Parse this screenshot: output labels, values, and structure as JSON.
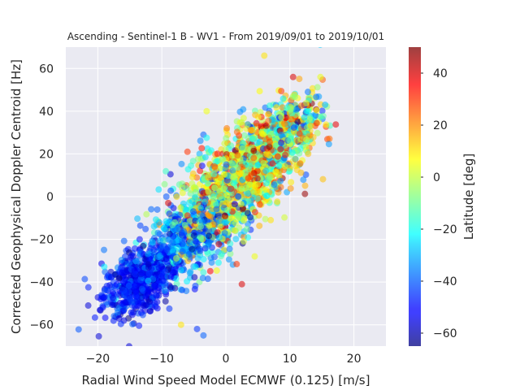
{
  "chart_data": {
    "type": "scatter",
    "title": "Ascending - Sentinel-1 B - WV1 - From 2019/09/01 to 2019/10/01",
    "xlabel": "Radial Wind Speed Model ECMWF (0.125) [m/s]",
    "ylabel": "Corrected Geophysical Doppler Centroid [Hz]",
    "xlim": [
      -25,
      25
    ],
    "ylim": [
      -70,
      70
    ],
    "x_ticks": [
      -20,
      -10,
      0,
      10,
      20
    ],
    "y_ticks": [
      -60,
      -40,
      -20,
      0,
      20,
      40,
      60
    ],
    "grid": true,
    "colorbar": {
      "label": "Latitude [deg]",
      "range": [
        -65,
        50
      ],
      "ticks": [
        -60,
        -40,
        -20,
        0,
        20,
        40
      ],
      "colormap": "jet"
    },
    "clusters": [
      {
        "x": -13.5,
        "y": -40,
        "sx": 2.8,
        "sy": 7,
        "latitude": -50,
        "lat_sd": 6,
        "count": 550
      },
      {
        "x": -7,
        "y": -22,
        "sx": 4,
        "sy": 9,
        "latitude": -38,
        "lat_sd": 10,
        "count": 450
      },
      {
        "x": -2,
        "y": -5,
        "sx": 3.5,
        "sy": 12,
        "latitude": -10,
        "lat_sd": 25,
        "count": 500
      },
      {
        "x": 4,
        "y": 12,
        "sx": 3.5,
        "sy": 10,
        "latitude": 5,
        "lat_sd": 20,
        "count": 600
      },
      {
        "x": 9,
        "y": 30,
        "sx": 3,
        "sy": 8,
        "latitude": -5,
        "lat_sd": 25,
        "count": 500
      }
    ],
    "outliers": [
      {
        "x": -21.5,
        "y": -51,
        "latitude": -55
      },
      {
        "x": -19.5,
        "y": -48,
        "latitude": -50
      },
      {
        "x": -7,
        "y": -60,
        "latitude": 10
      },
      {
        "x": -3.5,
        "y": -65,
        "latitude": -40
      },
      {
        "x": -4.5,
        "y": -62,
        "latitude": -45
      },
      {
        "x": 2.5,
        "y": -41,
        "latitude": 40
      },
      {
        "x": -9,
        "y": -3,
        "latitude": 40
      },
      {
        "x": -6,
        "y": 21,
        "latitude": 30
      },
      {
        "x": 6,
        "y": 66,
        "latitude": 10
      },
      {
        "x": -3,
        "y": 40,
        "latitude": 5
      },
      {
        "x": -3.5,
        "y": 29,
        "latitude": -40
      },
      {
        "x": 10.5,
        "y": 56,
        "latitude": 40
      },
      {
        "x": 15.5,
        "y": 43,
        "latitude": -30
      },
      {
        "x": 4.5,
        "y": -28,
        "latitude": 5
      },
      {
        "x": 7,
        "y": -11,
        "latitude": 10
      },
      {
        "x": 11.5,
        "y": 15,
        "latitude": -40
      },
      {
        "x": 1,
        "y": -7,
        "latitude": 35
      },
      {
        "x": 14,
        "y": 38,
        "latitude": -45
      }
    ]
  }
}
